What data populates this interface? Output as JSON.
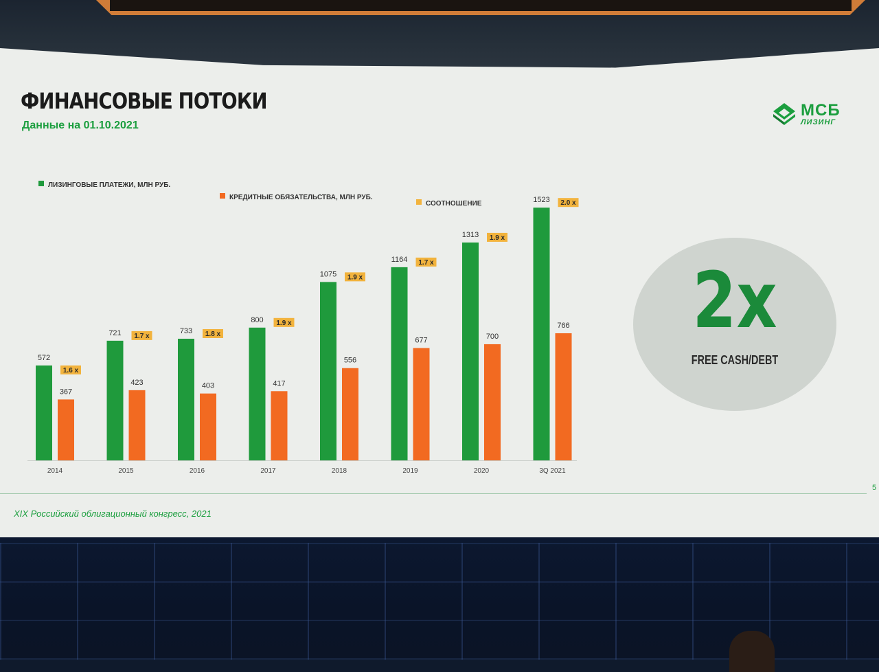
{
  "slide": {
    "title": "ФИНАНСОВЫЕ ПОТОКИ",
    "subtitle": "Данные на 01.10.2021",
    "logo_main": "МСБ",
    "logo_sub": "ЛИЗИНГ",
    "footer": "XIX Российский облигационный конгресс, 2021",
    "page_number": "5",
    "highlight": {
      "value": "2x",
      "caption": "FREE CASH/DEBT"
    }
  },
  "colors": {
    "green": "#1f9a3c",
    "orange": "#f26a21",
    "ratio_badge": "#f2b33d",
    "slide_bg": "#eceeeb"
  },
  "chart_data": {
    "type": "bar",
    "categories": [
      "2014",
      "2015",
      "2016",
      "2017",
      "2018",
      "2019",
      "2020",
      "3Q 2021"
    ],
    "series": [
      {
        "name": "ЛИЗИНГОВЫЕ ПЛАТЕЖИ, МЛН РУБ.",
        "values": [
          572,
          721,
          733,
          800,
          1075,
          1164,
          1313,
          1523
        ],
        "color": "#1f9a3c"
      },
      {
        "name": "КРЕДИТНЫЕ ОБЯЗАТЕЛЬСТВА, МЛН РУБ.",
        "values": [
          367,
          423,
          403,
          417,
          556,
          677,
          700,
          766
        ],
        "color": "#f26a21"
      }
    ],
    "ratio": {
      "name": "СООТНОШЕНИЕ",
      "labels": [
        "1.6 x",
        "1.7 x",
        "1.8 x",
        "1.9 x",
        "1.9 x",
        "1.7 x",
        "1.9 x",
        "2.0 x"
      ],
      "color": "#f2b33d"
    },
    "ylim": [
      0,
      1600
    ],
    "grid": false,
    "legend": "top"
  }
}
